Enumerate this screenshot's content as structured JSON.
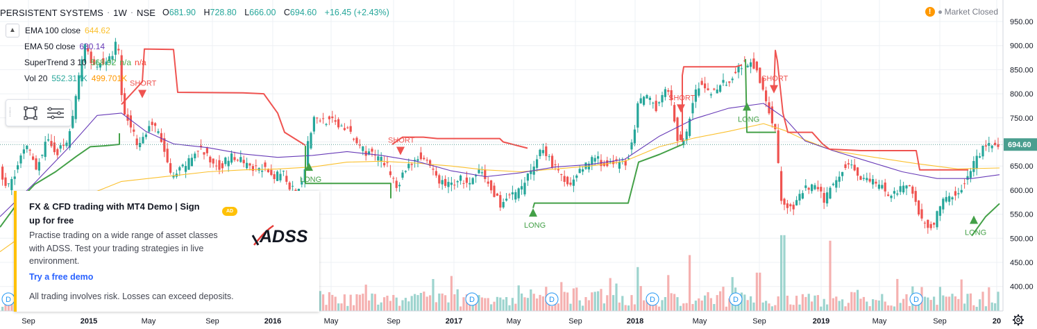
{
  "header": {
    "symbol": "PERSISTENT SYSTEMS",
    "interval": "1W",
    "exchange": "NSE",
    "open_label": "O",
    "open": "681.90",
    "high_label": "H",
    "high": "728.80",
    "low_label": "L",
    "low": "666.00",
    "close_label": "C",
    "close": "694.60",
    "change": "+16.45 (+2.43%)"
  },
  "market_status": {
    "icon": "warning-icon",
    "text": "Market Closed"
  },
  "legend": {
    "collapse_icon": "chevron-up-icon",
    "items": [
      {
        "name": "EMA 100 close",
        "value": "644.62",
        "color": "#fbc02d"
      },
      {
        "name": "EMA 50 close",
        "value": "630.14",
        "color": "#673ab7"
      },
      {
        "name": "SuperTrend 3 10",
        "value": "568.92",
        "value2": "n/a",
        "value3": "n/a",
        "color": "#4caf50",
        "color3": "#f44336"
      },
      {
        "name": "Vol 20",
        "value": "552.317K",
        "value2": "499.701K",
        "color": "#26a69a",
        "color2": "#ff9800"
      }
    ]
  },
  "toolbox": {
    "icons": [
      "selection-frame-icon",
      "object-tree-icon"
    ]
  },
  "ad": {
    "title": "FX & CFD trading with MT4 Demo | Sign up for free",
    "badge": "AD",
    "logo_text": "ADSS",
    "body": "Practise trading on a wide range of asset classes with ADSS. Test your trading strategies in live environment.",
    "cta": "Try a free demo",
    "disclaimer": "All trading involves risk. Losses can exceed deposits."
  },
  "colors": {
    "up": "#26a69a",
    "down": "#ef5350",
    "grid": "#eef0f4",
    "price_tag": "#4a9e8f"
  },
  "chart_data": {
    "type": "candlestick",
    "title": "",
    "x_ticks": [
      "Sep",
      "2015",
      "May",
      "Sep",
      "2016",
      "May",
      "Sep",
      "2017",
      "May",
      "Sep",
      "2018",
      "May",
      "Sep",
      "2019",
      "May",
      "Sep",
      "20"
    ],
    "y_ticks": [
      "950.00",
      "900.00",
      "850.00",
      "800.00",
      "750.00",
      "700.00",
      "650.00",
      "600.00",
      "550.00",
      "500.00",
      "450.00",
      "400.00"
    ],
    "ylim": [
      372,
      972
    ],
    "last_price": "694.60",
    "close_path": [
      [
        0,
        650
      ],
      [
        12,
        600
      ],
      [
        25,
        640
      ],
      [
        40,
        690
      ],
      [
        55,
        650
      ],
      [
        70,
        700
      ],
      [
        85,
        680
      ],
      [
        100,
        700
      ],
      [
        110,
        770
      ],
      [
        118,
        850
      ],
      [
        124,
        900
      ],
      [
        132,
        880
      ],
      [
        140,
        850
      ],
      [
        148,
        870
      ],
      [
        156,
        860
      ],
      [
        164,
        880
      ],
      [
        172,
        915
      ],
      [
        180,
        760
      ],
      [
        190,
        740
      ],
      [
        200,
        700
      ],
      [
        210,
        710
      ],
      [
        220,
        740
      ],
      [
        230,
        720
      ],
      [
        240,
        680
      ],
      [
        250,
        620
      ],
      [
        262,
        640
      ],
      [
        275,
        660
      ],
      [
        290,
        690
      ],
      [
        305,
        660
      ],
      [
        320,
        650
      ],
      [
        335,
        670
      ],
      [
        350,
        660
      ],
      [
        365,
        640
      ],
      [
        380,
        650
      ],
      [
        395,
        620
      ],
      [
        410,
        640
      ],
      [
        420,
        610
      ],
      [
        430,
        600
      ],
      [
        440,
        630
      ],
      [
        448,
        710
      ],
      [
        456,
        750
      ],
      [
        470,
        745
      ],
      [
        485,
        740
      ],
      [
        500,
        730
      ],
      [
        515,
        700
      ],
      [
        530,
        680
      ],
      [
        545,
        670
      ],
      [
        560,
        650
      ],
      [
        575,
        610
      ],
      [
        590,
        650
      ],
      [
        605,
        670
      ],
      [
        620,
        650
      ],
      [
        635,
        620
      ],
      [
        650,
        610
      ],
      [
        665,
        625
      ],
      [
        680,
        610
      ],
      [
        695,
        640
      ],
      [
        710,
        600
      ],
      [
        725,
        570
      ],
      [
        740,
        590
      ],
      [
        755,
        600
      ],
      [
        770,
        650
      ],
      [
        785,
        690
      ],
      [
        800,
        650
      ],
      [
        815,
        620
      ],
      [
        830,
        620
      ],
      [
        845,
        650
      ],
      [
        860,
        670
      ],
      [
        875,
        650
      ],
      [
        890,
        655
      ],
      [
        905,
        660
      ],
      [
        915,
        700
      ],
      [
        922,
        780
      ],
      [
        935,
        790
      ],
      [
        950,
        770
      ],
      [
        960,
        820
      ],
      [
        970,
        780
      ],
      [
        980,
        700
      ],
      [
        990,
        700
      ],
      [
        1000,
        780
      ],
      [
        1010,
        820
      ],
      [
        1025,
        800
      ],
      [
        1040,
        820
      ],
      [
        1055,
        830
      ],
      [
        1070,
        860
      ],
      [
        1080,
        865
      ],
      [
        1090,
        860
      ],
      [
        1100,
        820
      ],
      [
        1110,
        770
      ],
      [
        1120,
        720
      ],
      [
        1128,
        580
      ],
      [
        1138,
        560
      ],
      [
        1150,
        570
      ],
      [
        1160,
        600
      ],
      [
        1175,
        610
      ],
      [
        1190,
        580
      ],
      [
        1205,
        620
      ],
      [
        1215,
        640
      ],
      [
        1225,
        660
      ],
      [
        1240,
        630
      ],
      [
        1255,
        620
      ],
      [
        1270,
        610
      ],
      [
        1285,
        590
      ],
      [
        1300,
        600
      ],
      [
        1315,
        610
      ],
      [
        1325,
        560
      ],
      [
        1335,
        530
      ],
      [
        1345,
        520
      ],
      [
        1355,
        560
      ],
      [
        1365,
        580
      ],
      [
        1375,
        590
      ],
      [
        1385,
        600
      ],
      [
        1395,
        620
      ],
      [
        1405,
        650
      ],
      [
        1415,
        680
      ],
      [
        1425,
        690
      ],
      [
        1438,
        695
      ]
    ],
    "ema50_path": [
      [
        0,
        545
      ],
      [
        50,
        615
      ],
      [
        100,
        690
      ],
      [
        140,
        755
      ],
      [
        175,
        760
      ],
      [
        210,
        722
      ],
      [
        250,
        696
      ],
      [
        300,
        688
      ],
      [
        350,
        675
      ],
      [
        400,
        668
      ],
      [
        450,
        672
      ],
      [
        500,
        680
      ],
      [
        550,
        672
      ],
      [
        600,
        660
      ],
      [
        650,
        640
      ],
      [
        700,
        628
      ],
      [
        750,
        636
      ],
      [
        800,
        648
      ],
      [
        850,
        653
      ],
      [
        900,
        664
      ],
      [
        950,
        712
      ],
      [
        1000,
        748
      ],
      [
        1050,
        770
      ],
      [
        1100,
        780
      ],
      [
        1130,
        750
      ],
      [
        1160,
        702
      ],
      [
        1200,
        682
      ],
      [
        1250,
        660
      ],
      [
        1300,
        638
      ],
      [
        1350,
        624
      ],
      [
        1400,
        624
      ],
      [
        1440,
        632
      ]
    ],
    "ema100_path": [
      [
        0,
        472
      ],
      [
        100,
        575
      ],
      [
        175,
        618
      ],
      [
        250,
        630
      ],
      [
        300,
        638
      ],
      [
        350,
        642
      ],
      [
        400,
        644
      ],
      [
        450,
        648
      ],
      [
        500,
        658
      ],
      [
        550,
        660
      ],
      [
        600,
        656
      ],
      [
        650,
        650
      ],
      [
        700,
        642
      ],
      [
        750,
        638
      ],
      [
        800,
        644
      ],
      [
        850,
        650
      ],
      [
        900,
        660
      ],
      [
        950,
        690
      ],
      [
        1000,
        708
      ],
      [
        1050,
        722
      ],
      [
        1100,
        738
      ],
      [
        1130,
        724
      ],
      [
        1160,
        704
      ],
      [
        1200,
        682
      ],
      [
        1260,
        668
      ],
      [
        1320,
        655
      ],
      [
        1380,
        644
      ],
      [
        1440,
        646
      ]
    ],
    "supertrend_green": [
      [
        [
          0,
          523
        ],
        [
          30,
          582
        ],
        [
          50,
          612
        ],
        [
          80,
          638
        ],
        [
          110,
          670
        ],
        [
          130,
          690
        ],
        [
          150,
          692
        ],
        [
          172,
          695
        ],
        [
          172,
          718
        ]
      ],
      [
        [
          440,
          692
        ],
        [
          440,
          614
        ],
        [
          470,
          614
        ],
        [
          520,
          614
        ],
        [
          563,
          614
        ],
        [
          563,
          583
        ]
      ],
      [
        [
          768,
          563
        ],
        [
          770,
          573
        ],
        [
          830,
          573
        ],
        [
          905,
          573
        ],
        [
          920,
          658
        ],
        [
          950,
          674
        ],
        [
          985,
          696
        ]
      ],
      [
        [
          1074,
          872
        ],
        [
          1076,
          720
        ],
        [
          1118,
          720
        ]
      ],
      [
        [
          1400,
          505
        ],
        [
          1420,
          545
        ],
        [
          1440,
          572
        ]
      ]
    ],
    "supertrend_red": [
      [
        [
          175,
          778
        ],
        [
          205,
          825
        ],
        [
          208,
          893
        ],
        [
          250,
          892
        ],
        [
          256,
          803
        ],
        [
          350,
          802
        ],
        [
          380,
          800
        ],
        [
          400,
          760
        ],
        [
          410,
          720
        ],
        [
          440,
          693
        ]
      ],
      [
        [
          565,
          695
        ],
        [
          580,
          710
        ],
        [
          610,
          710
        ],
        [
          630,
          707
        ],
        [
          720,
          707
        ],
        [
          725,
          700
        ],
        [
          760,
          687
        ]
      ],
      [
        [
          983,
          700
        ],
        [
          983,
          838
        ],
        [
          985,
          856
        ],
        [
          1060,
          856
        ],
        [
          1069,
          860
        ]
      ],
      [
        [
          1115,
          807
        ],
        [
          1117,
          890
        ],
        [
          1120,
          868
        ],
        [
          1128,
          760
        ],
        [
          1135,
          720
        ],
        [
          1170,
          720
        ],
        [
          1185,
          696
        ],
        [
          1195,
          685
        ],
        [
          1240,
          682
        ],
        [
          1320,
          682
        ],
        [
          1325,
          642
        ],
        [
          1395,
          642
        ]
      ]
    ],
    "signals": [
      {
        "type": "short",
        "label": "SHORT",
        "x": 205,
        "price": 808
      },
      {
        "type": "short",
        "label": "SHORT",
        "x": 577,
        "price": 690
      },
      {
        "type": "short",
        "label": "SHORT",
        "x": 981,
        "price": 778
      },
      {
        "type": "short",
        "label": "SHORT",
        "x": 1115,
        "price": 818
      },
      {
        "type": "long",
        "label": "LONG",
        "x": 445,
        "price": 640
      },
      {
        "type": "long",
        "label": "LONG",
        "x": 768,
        "price": 545
      },
      {
        "type": "long",
        "label": "LONG",
        "x": 1076,
        "price": 765
      },
      {
        "type": "long",
        "label": "LONG",
        "x": 1403,
        "price": 530
      }
    ],
    "dividends": [
      {
        "label": "D",
        "x": 12
      },
      {
        "label": "D",
        "x": 421
      },
      {
        "label": "D",
        "x": 448
      },
      {
        "label": "D",
        "x": 680
      },
      {
        "label": "D",
        "x": 795
      },
      {
        "label": "D",
        "x": 940
      },
      {
        "label": "D",
        "x": 1060
      },
      {
        "label": "D",
        "x": 1320
      }
    ],
    "volume_spikes": [
      [
        1126,
        0.95
      ],
      [
        1196,
        0.88
      ],
      [
        993,
        0.7
      ],
      [
        918,
        0.55
      ],
      [
        1091,
        0.48
      ],
      [
        623,
        0.4
      ],
      [
        137,
        0.38
      ],
      [
        745,
        0.32
      ],
      [
        1328,
        0.3
      ]
    ]
  }
}
